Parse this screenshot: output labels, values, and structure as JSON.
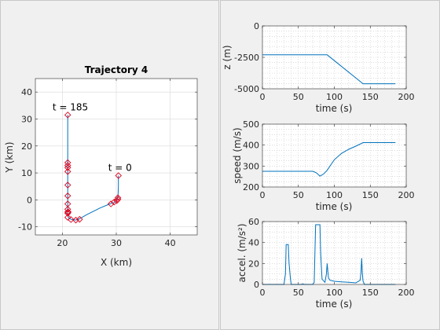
{
  "figure_background": "#f0f0f0",
  "line_color": "#0072bd",
  "marker_color": "#e0001b",
  "chart_data": [
    {
      "id": "trajectory",
      "type": "line",
      "title": "Trajectory 4",
      "xlabel": "X (km)",
      "ylabel": "Y (km)",
      "xlim": [
        15,
        45
      ],
      "ylim": [
        -13,
        45
      ],
      "xticks": [
        20,
        30,
        40
      ],
      "yticks": [
        -10,
        0,
        10,
        20,
        30,
        40
      ],
      "grid": true,
      "x": [
        21.0,
        21.0,
        21.0,
        21.0,
        21.0,
        21.1,
        21.6,
        22.5,
        23.2,
        24.5,
        27.0,
        28.8,
        29.6,
        30.1,
        30.3,
        30.4,
        30.4
      ],
      "y": [
        31.5,
        13.0,
        5.0,
        0.0,
        -4.5,
        -6.5,
        -7.2,
        -7.5,
        -7.0,
        -5.5,
        -3.0,
        -1.5,
        -1.0,
        0.0,
        1.0,
        5.0,
        9.0
      ],
      "markers": {
        "x": [
          21.0,
          21.0,
          21.0,
          21.0,
          21.0,
          21.0,
          21.0,
          21.0,
          21.0,
          21.0,
          21.0,
          21.1,
          21.0,
          21.6,
          22.5,
          23.2,
          29.0,
          29.6,
          30.1,
          30.3,
          30.3,
          30.4
        ],
        "y": [
          31.5,
          13.8,
          12.8,
          12.0,
          10.5,
          5.5,
          1.5,
          -1.5,
          -3.5,
          -4.5,
          -5.0,
          -4.5,
          -6.5,
          -7.3,
          -7.5,
          -7.2,
          -1.5,
          -0.8,
          -0.3,
          0.2,
          0.8,
          9.0
        ]
      },
      "annotations": [
        {
          "text": "t = 185",
          "x": 21.0,
          "y": 31.5,
          "anchor": "end"
        },
        {
          "text": "t = 0",
          "x": 30.4,
          "y": 9.0,
          "anchor": "middle"
        }
      ]
    },
    {
      "id": "altitude",
      "type": "line",
      "xlabel": "time (s)",
      "ylabel": "z (m)",
      "xlim": [
        0,
        200
      ],
      "ylim": [
        0,
        -5000
      ],
      "y_reversed": true,
      "xticks": [
        0,
        50,
        100,
        150,
        200
      ],
      "yticks": [
        0,
        -2500,
        -5000
      ],
      "grid": "minor",
      "x": [
        0,
        90,
        140,
        185
      ],
      "y": [
        -2300,
        -2300,
        -4600,
        -4600
      ]
    },
    {
      "id": "speed",
      "type": "line",
      "xlabel": "time (s)",
      "ylabel": "speed (m/s)",
      "xlim": [
        0,
        200
      ],
      "ylim": [
        200,
        500
      ],
      "xticks": [
        0,
        50,
        100,
        150,
        200
      ],
      "yticks": [
        200,
        300,
        400,
        500
      ],
      "grid": "minor",
      "x": [
        0,
        70,
        75,
        80,
        85,
        90,
        95,
        100,
        110,
        120,
        130,
        140,
        185
      ],
      "y": [
        275,
        275,
        268,
        252,
        262,
        280,
        305,
        330,
        360,
        380,
        395,
        412,
        412
      ]
    },
    {
      "id": "accel",
      "type": "line",
      "xlabel": "time (s)",
      "ylabel": "accel. (m/s²)",
      "xlim": [
        0,
        200
      ],
      "ylim": [
        0,
        60
      ],
      "xticks": [
        0,
        50,
        100,
        150,
        200
      ],
      "yticks": [
        0,
        20,
        40,
        60
      ],
      "grid": "minor",
      "x": [
        0,
        30,
        32,
        33,
        36,
        37,
        39,
        40,
        54,
        56,
        58,
        70,
        72,
        74,
        80,
        81,
        83,
        87,
        88,
        89,
        90,
        91,
        92,
        94,
        100,
        110,
        120,
        130,
        136,
        137,
        138,
        139,
        140,
        142,
        185
      ],
      "y": [
        0,
        0,
        10,
        38,
        38,
        20,
        5,
        0,
        0,
        0.5,
        0,
        0,
        2,
        57,
        57,
        30,
        5,
        2,
        6,
        10,
        20,
        12,
        6,
        4,
        3,
        2.5,
        2,
        1.5,
        4,
        12,
        25,
        10,
        3,
        0,
        0
      ]
    }
  ]
}
